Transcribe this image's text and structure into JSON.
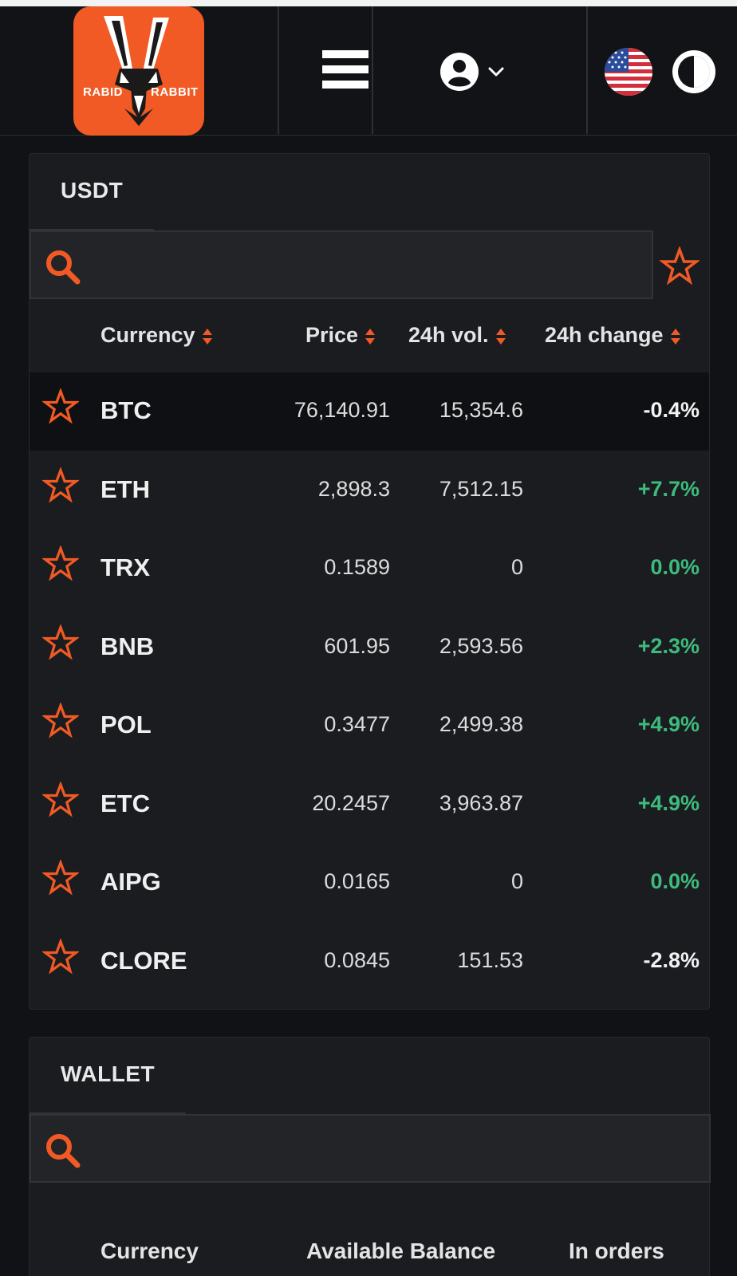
{
  "header": {
    "logo": {
      "left_word": "RABID",
      "right_word": "RABBIT",
      "brand_color": "#f15a24"
    },
    "menu_icon": "hamburger-menu-icon",
    "user_icon": "user-circle-icon",
    "language_icon": "us-flag-icon",
    "theme_icon": "contrast-toggle-icon"
  },
  "market": {
    "tab_label": "USDT",
    "search_placeholder": "",
    "columns": {
      "currency": "Currency",
      "price": "Price",
      "volume": "24h vol.",
      "change": "24h change"
    },
    "rows": [
      {
        "currency": "BTC",
        "price": "76,140.91",
        "volume": "15,354.6",
        "change": "-0.4%",
        "direction": "neg"
      },
      {
        "currency": "ETH",
        "price": "2,898.3",
        "volume": "7,512.15",
        "change": "+7.7%",
        "direction": "pos"
      },
      {
        "currency": "TRX",
        "price": "0.1589",
        "volume": "0",
        "change": "0.0%",
        "direction": "pos"
      },
      {
        "currency": "BNB",
        "price": "601.95",
        "volume": "2,593.56",
        "change": "+2.3%",
        "direction": "pos"
      },
      {
        "currency": "POL",
        "price": "0.3477",
        "volume": "2,499.38",
        "change": "+4.9%",
        "direction": "pos"
      },
      {
        "currency": "ETC",
        "price": "20.2457",
        "volume": "3,963.87",
        "change": "+4.9%",
        "direction": "pos"
      },
      {
        "currency": "AIPG",
        "price": "0.0165",
        "volume": "0",
        "change": "0.0%",
        "direction": "pos"
      },
      {
        "currency": "CLORE",
        "price": "0.0845",
        "volume": "151.53",
        "change": "-2.8%",
        "direction": "neg"
      }
    ]
  },
  "wallet": {
    "tab_label": "WALLET",
    "search_placeholder": "",
    "columns": {
      "currency": "Currency",
      "available": "Available Balance",
      "in_orders": "In orders"
    }
  },
  "colors": {
    "accent": "#f15a24",
    "positive": "#3dbb7d",
    "background": "#101215",
    "panel": "#1a1c20"
  }
}
